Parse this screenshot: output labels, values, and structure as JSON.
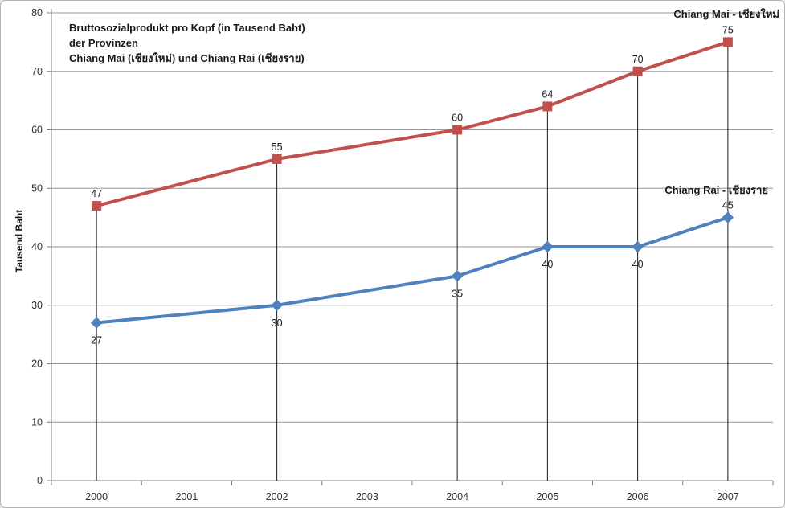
{
  "chart_data": {
    "type": "line",
    "title_lines": [
      "Bruttosozialprodukt pro Kopf (in Tausend Baht)",
      "der Provinzen",
      "Chiang Mai (เชียงใหม่) und Chiang Rai (เชียงราย)"
    ],
    "ylabel": "Tausend Baht",
    "xlabel": "",
    "categories": [
      "2000",
      "2001",
      "2002",
      "2003",
      "2004",
      "2005",
      "2006",
      "2007"
    ],
    "y_ticks": [
      0,
      10,
      20,
      30,
      40,
      50,
      60,
      70,
      80
    ],
    "ylim": [
      0,
      80
    ],
    "grid": "horizontal",
    "legend_position": "inline-right",
    "series": [
      {
        "name": "Chiang Mai - เชียงใหม่",
        "marker": "square",
        "color": "#C0504D",
        "points": [
          {
            "x": "2000",
            "y": 47,
            "label": "47",
            "label_pos": "above"
          },
          {
            "x": "2002",
            "y": 55,
            "label": "55",
            "label_pos": "above"
          },
          {
            "x": "2004",
            "y": 60,
            "label": "60",
            "label_pos": "above"
          },
          {
            "x": "2005",
            "y": 64,
            "label": "64",
            "label_pos": "above"
          },
          {
            "x": "2006",
            "y": 70,
            "label": "70",
            "label_pos": "above"
          },
          {
            "x": "2007",
            "y": 75,
            "label": "75",
            "label_pos": "above"
          }
        ]
      },
      {
        "name": "Chiang Rai - เชียงราย",
        "marker": "diamond",
        "color": "#4F81BD",
        "points": [
          {
            "x": "2000",
            "y": 27,
            "label": "27",
            "label_pos": "below"
          },
          {
            "x": "2002",
            "y": 30,
            "label": "30",
            "label_pos": "below"
          },
          {
            "x": "2004",
            "y": 35,
            "label": "35",
            "label_pos": "below"
          },
          {
            "x": "2005",
            "y": 40,
            "label": "40",
            "label_pos": "below"
          },
          {
            "x": "2006",
            "y": 40,
            "label": "40",
            "label_pos": "below"
          },
          {
            "x": "2007",
            "y": 45,
            "label": "45",
            "label_pos": "above"
          }
        ]
      }
    ],
    "drop_lines_at": [
      "2000",
      "2002",
      "2004",
      "2005",
      "2006",
      "2007"
    ]
  },
  "colors": {
    "background": "#FFFFFF",
    "border": "#B3B3B3",
    "gridline": "#969696",
    "axis": "#7F7F7F",
    "drop_line": "#1a1a1a",
    "tick_text": "#303030",
    "data_label_text": "#1a1a1a",
    "series_red": "#C0504D",
    "series_blue": "#4F81BD"
  }
}
